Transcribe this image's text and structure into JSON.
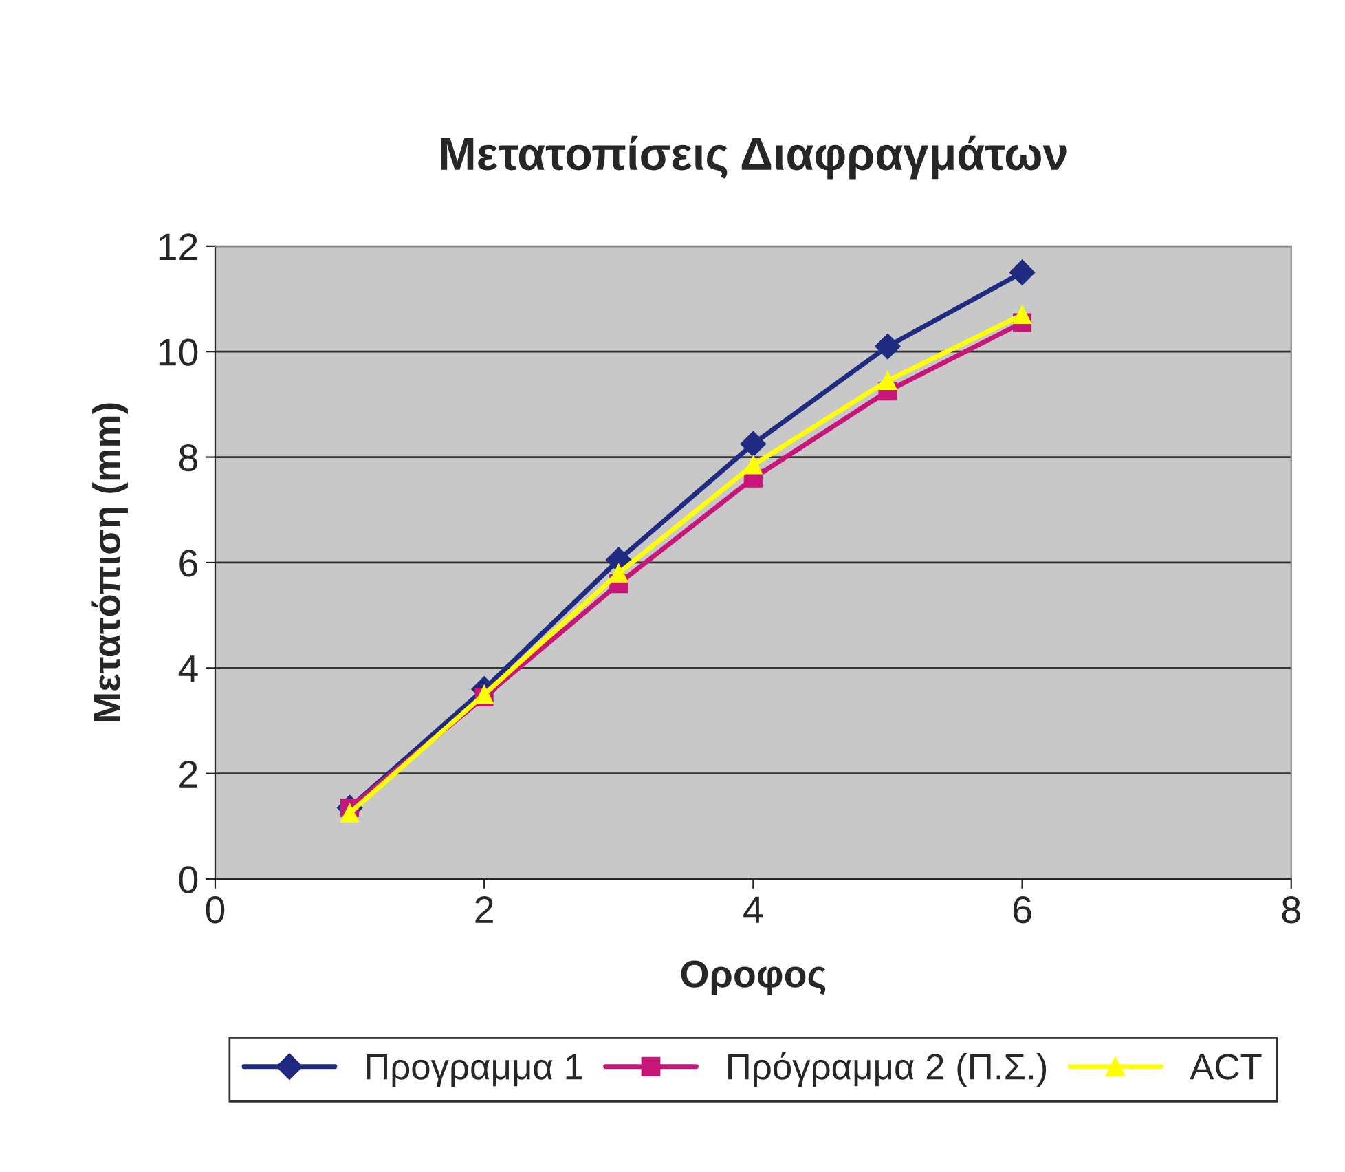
{
  "chart_data": {
    "type": "line",
    "title": "Μετατοπίσεις Διαφραγμάτων",
    "xlabel": "Οροφος",
    "ylabel": "Μετατόπιση (mm)",
    "x": [
      1,
      2,
      3,
      4,
      5,
      6
    ],
    "series": [
      {
        "name": "Προγραμμα 1",
        "color": "#1f2a80",
        "marker": "diamond",
        "values": [
          1.35,
          3.6,
          6.05,
          8.25,
          10.1,
          11.5
        ]
      },
      {
        "name": "Πρόγραμμα 2 (Π.Σ.)",
        "color": "#c8157a",
        "marker": "square",
        "values": [
          1.35,
          3.45,
          5.6,
          7.6,
          9.25,
          10.55
        ]
      },
      {
        "name": "ACT",
        "color": "#ffff00",
        "marker": "triangle",
        "values": [
          1.25,
          3.5,
          5.8,
          7.85,
          9.45,
          10.7
        ]
      }
    ],
    "xlim": [
      0,
      8
    ],
    "xticks": [
      0,
      2,
      4,
      6,
      8
    ],
    "ylim": [
      0,
      12
    ],
    "yticks": [
      0,
      2,
      4,
      6,
      8,
      10,
      12
    ],
    "grid": "y",
    "legend": "bottom",
    "line_style": "solid"
  }
}
